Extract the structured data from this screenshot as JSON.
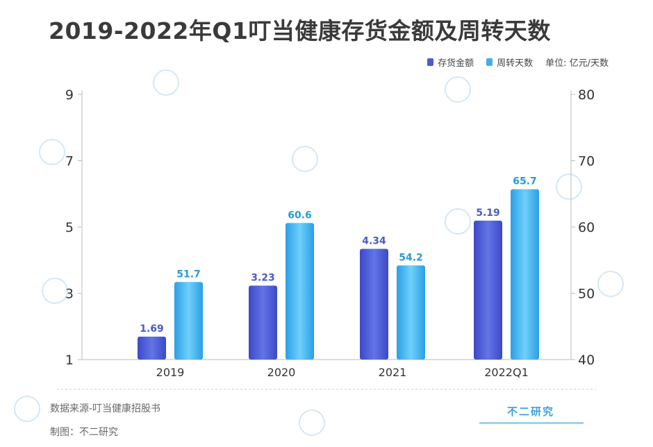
{
  "title": "2019-2022年Q1叮当健康存货金额及周转天数",
  "legend": {
    "series1": "存货金额",
    "series2": "周转天数",
    "unit": "单位: 亿元/天数"
  },
  "colors": {
    "series1": "#4a5bd6",
    "series2": "#3fb0ee",
    "series1_label": "#4a5bc8",
    "series2_label": "#2a9ad8"
  },
  "chart_data": {
    "type": "bar",
    "categories": [
      "2019",
      "2020",
      "2021",
      "2022Q1"
    ],
    "series": [
      {
        "name": "存货金额",
        "axis": "left",
        "values": [
          1.69,
          3.23,
          4.34,
          5.19
        ]
      },
      {
        "name": "周转天数",
        "axis": "right",
        "values": [
          51.7,
          60.6,
          54.2,
          65.7
        ]
      }
    ],
    "data_labels": {
      "series1": [
        "1.69",
        "3.23",
        "4.34",
        "5.19"
      ],
      "series2": [
        "51.7",
        "60.6",
        "54.2",
        "65.7"
      ]
    },
    "left_axis": {
      "ylim": [
        1,
        9
      ],
      "ticks": [
        1,
        3,
        5,
        7,
        9
      ]
    },
    "right_axis": {
      "ylim": [
        40,
        80
      ],
      "ticks": [
        40,
        50,
        60,
        70,
        80
      ]
    },
    "title": "2019-2022年Q1叮当健康存货金额及周转天数"
  },
  "footer": {
    "source": "数据来源-叮当健康招股书",
    "author": "制图：不二研究"
  },
  "brand": "不二研究"
}
